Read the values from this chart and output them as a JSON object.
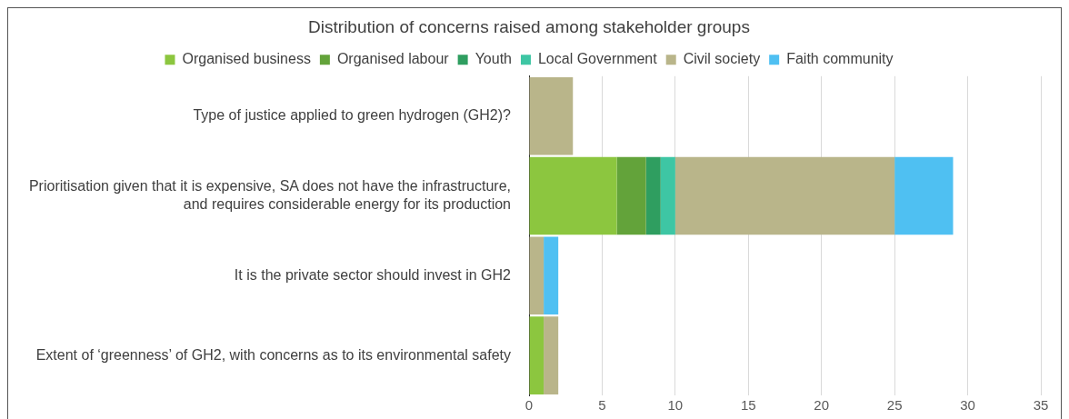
{
  "chart_data": {
    "type": "bar",
    "orientation": "horizontal",
    "stacked": true,
    "title": "Distribution of concerns raised among stakeholder groups",
    "categories": [
      "Type of justice applied to green hydrogen (GH2)?",
      "Prioritisation given that it is expensive, SA does not have the infrastructure, and requires considerable energy for its production",
      "It is the private sector should invest in GH2",
      "Extent of ‘greenness’ of GH2, with concerns as to its environmental safety"
    ],
    "series": [
      {
        "name": "Organised business",
        "color": "#8cc63f",
        "values": [
          0,
          6,
          0,
          1
        ]
      },
      {
        "name": "Organised labour",
        "color": "#63a33a",
        "values": [
          0,
          2,
          0,
          0
        ]
      },
      {
        "name": "Youth",
        "color": "#2f9e60",
        "values": [
          0,
          1,
          0,
          0
        ]
      },
      {
        "name": "Local Government",
        "color": "#3ec6a4",
        "values": [
          0,
          1,
          0,
          0
        ]
      },
      {
        "name": "Civil society",
        "color": "#b9b58a",
        "values": [
          3,
          15,
          1,
          1
        ]
      },
      {
        "name": "Faith community",
        "color": "#4fc0f2",
        "values": [
          0,
          4,
          1,
          0
        ]
      }
    ],
    "xlim": [
      0,
      35
    ],
    "xticks": [
      0,
      5,
      10,
      15,
      20,
      25,
      30,
      35
    ],
    "grid": "x",
    "legend": "top"
  }
}
